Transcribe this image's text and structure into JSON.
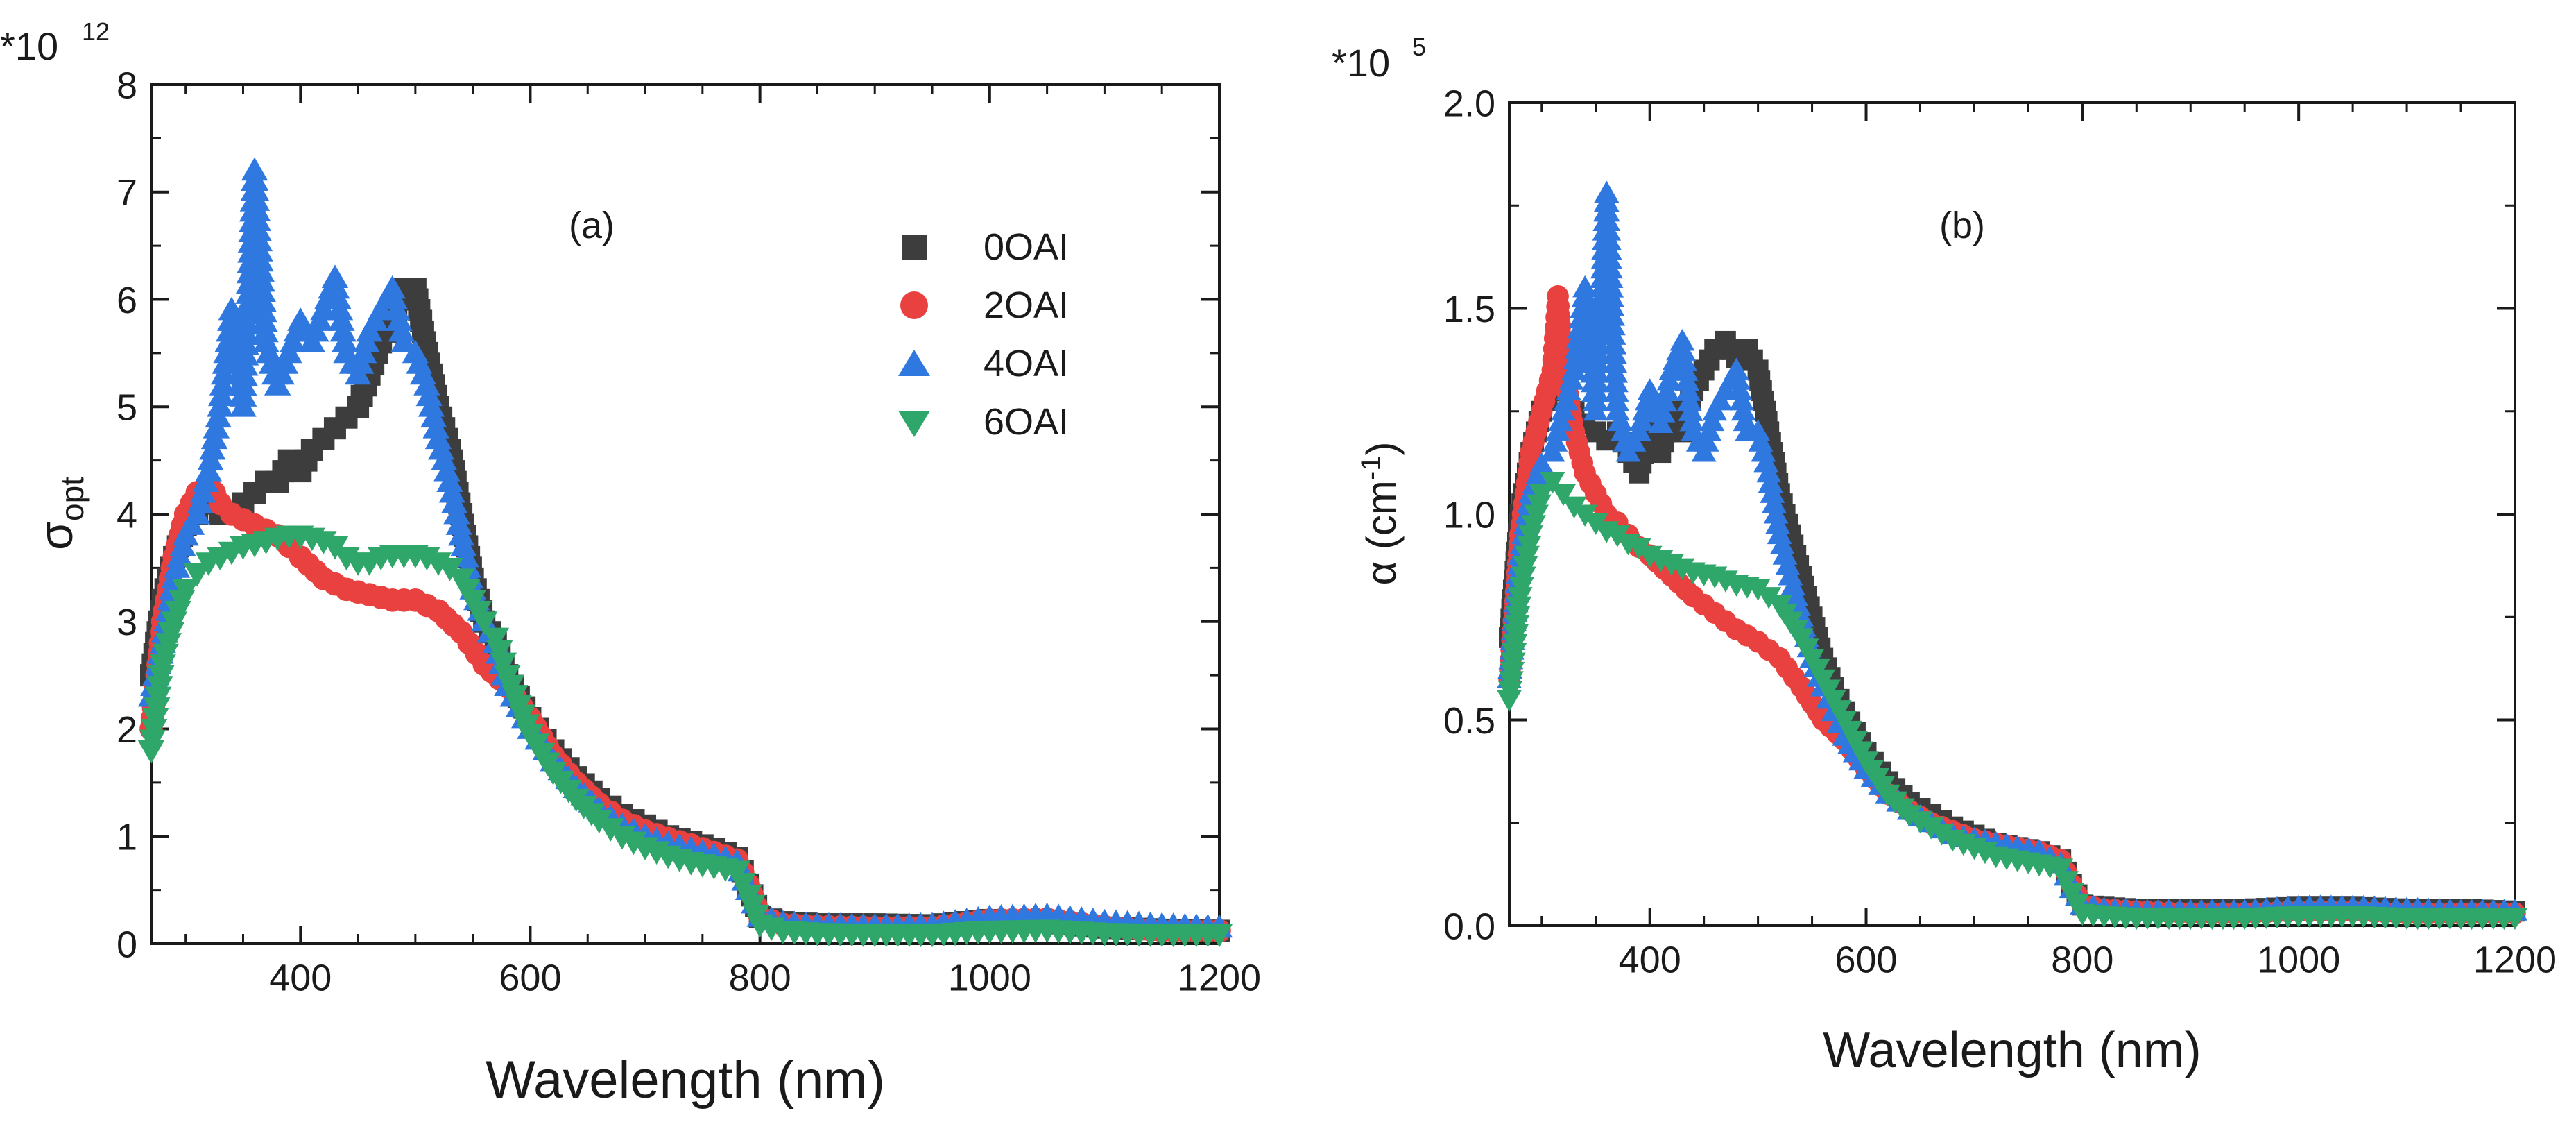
{
  "figure": {
    "background": "#ffffff"
  },
  "legend": {
    "entries": [
      {
        "name": "0OAI",
        "marker": "square",
        "color": "#3d3d3d"
      },
      {
        "name": "2OAI",
        "marker": "circle",
        "color": "#e8413f"
      },
      {
        "name": "4OAI",
        "marker": "triangle-up",
        "color": "#2f78e0"
      },
      {
        "name": "6OAI",
        "marker": "triangle-down",
        "color": "#2fa66a"
      }
    ]
  },
  "chart_data": [
    {
      "type": "scatter",
      "panel_label": "(a)",
      "multiplier": "*10",
      "exponent": "12",
      "ylabel_main": "σ",
      "ylabel_sub": "opt",
      "xlabel": "Wavelength (nm)",
      "xlim": [
        270,
        1200
      ],
      "ylim": [
        0,
        8
      ],
      "xticks": [
        400,
        600,
        800,
        1000,
        1200
      ],
      "xtick_labels": [
        "400",
        "600",
        "800",
        "1000",
        "1200"
      ],
      "yticks": [
        0,
        1,
        2,
        3,
        4,
        5,
        6,
        7,
        8
      ],
      "ytick_labels": [
        "0",
        "1",
        "2",
        "3",
        "4",
        "5",
        "6",
        "7",
        "8"
      ],
      "legend_location": "top-right",
      "series": [
        {
          "name": "0OAI",
          "x": [
            270,
            280,
            290,
            300,
            310,
            320,
            330,
            340,
            350,
            360,
            370,
            380,
            390,
            400,
            410,
            420,
            430,
            440,
            450,
            460,
            470,
            480,
            490,
            500,
            510,
            520,
            530,
            540,
            550,
            560,
            570,
            580,
            600,
            620,
            640,
            660,
            680,
            700,
            720,
            740,
            760,
            780,
            790,
            800,
            820,
            850,
            900,
            950,
            1000,
            1050,
            1100,
            1150,
            1200
          ],
          "y": [
            2.5,
            3.2,
            3.6,
            3.9,
            4.0,
            4.1,
            4.0,
            4.0,
            4.1,
            4.2,
            4.3,
            4.3,
            4.5,
            4.4,
            4.6,
            4.7,
            4.8,
            4.9,
            5.0,
            5.3,
            5.6,
            5.8,
            6.1,
            6.1,
            5.5,
            5.0,
            4.6,
            4.0,
            3.4,
            3.0,
            2.8,
            2.5,
            2.1,
            1.8,
            1.55,
            1.35,
            1.2,
            1.1,
            1.0,
            0.95,
            0.88,
            0.8,
            0.55,
            0.25,
            0.2,
            0.18,
            0.18,
            0.17,
            0.22,
            0.2,
            0.15,
            0.13,
            0.12
          ]
        },
        {
          "name": "2OAI",
          "x": [
            270,
            280,
            290,
            300,
            310,
            320,
            330,
            340,
            350,
            360,
            370,
            380,
            390,
            400,
            420,
            440,
            460,
            480,
            500,
            520,
            540,
            560,
            580,
            600,
            620,
            640,
            660,
            680,
            700,
            720,
            740,
            760,
            780,
            790,
            800,
            820,
            850,
            900,
            950,
            1000,
            1050,
            1100,
            1150,
            1200
          ],
          "y": [
            2.0,
            3.0,
            3.6,
            4.0,
            4.2,
            4.3,
            4.1,
            4.0,
            3.95,
            3.9,
            3.85,
            3.8,
            3.7,
            3.6,
            3.4,
            3.3,
            3.25,
            3.2,
            3.2,
            3.1,
            2.9,
            2.6,
            2.4,
            2.1,
            1.75,
            1.5,
            1.3,
            1.15,
            1.05,
            0.98,
            0.92,
            0.85,
            0.78,
            0.55,
            0.25,
            0.18,
            0.16,
            0.15,
            0.15,
            0.22,
            0.23,
            0.16,
            0.12,
            0.12
          ]
        },
        {
          "name": "4OAI",
          "x": [
            270,
            280,
            290,
            300,
            310,
            320,
            330,
            340,
            350,
            360,
            370,
            380,
            390,
            400,
            410,
            420,
            430,
            440,
            450,
            460,
            470,
            480,
            490,
            500,
            510,
            520,
            530,
            540,
            550,
            560,
            570,
            580,
            600,
            620,
            640,
            660,
            680,
            700,
            720,
            740,
            760,
            780,
            790,
            800,
            820,
            850,
            900,
            950,
            1000,
            1050,
            1100,
            1150,
            1200
          ],
          "y": [
            2.3,
            2.8,
            3.4,
            3.8,
            4.0,
            4.4,
            5.0,
            5.9,
            5.0,
            7.2,
            5.6,
            5.2,
            5.5,
            5.8,
            5.6,
            5.9,
            6.2,
            5.5,
            5.3,
            5.7,
            5.9,
            6.1,
            5.6,
            5.5,
            5.2,
            4.7,
            4.3,
            3.8,
            3.3,
            3.0,
            2.8,
            2.4,
            2.0,
            1.7,
            1.45,
            1.25,
            1.1,
            1.0,
            0.93,
            0.88,
            0.82,
            0.76,
            0.5,
            0.25,
            0.19,
            0.17,
            0.16,
            0.17,
            0.24,
            0.26,
            0.2,
            0.17,
            0.15
          ]
        },
        {
          "name": "6OAI",
          "x": [
            270,
            280,
            290,
            300,
            310,
            320,
            330,
            340,
            350,
            360,
            370,
            380,
            390,
            400,
            410,
            420,
            430,
            440,
            450,
            460,
            470,
            480,
            490,
            500,
            510,
            520,
            530,
            540,
            550,
            560,
            570,
            580,
            600,
            620,
            640,
            660,
            680,
            700,
            720,
            740,
            760,
            780,
            790,
            800,
            820,
            850,
            900,
            950,
            1000,
            1050,
            1100,
            1150,
            1200
          ],
          "y": [
            1.8,
            2.6,
            3.0,
            3.3,
            3.45,
            3.55,
            3.6,
            3.65,
            3.7,
            3.72,
            3.75,
            3.78,
            3.8,
            3.8,
            3.78,
            3.75,
            3.7,
            3.6,
            3.55,
            3.55,
            3.6,
            3.62,
            3.62,
            3.62,
            3.6,
            3.55,
            3.5,
            3.4,
            3.2,
            3.0,
            2.85,
            2.5,
            1.95,
            1.6,
            1.35,
            1.15,
            1.0,
            0.9,
            0.82,
            0.76,
            0.72,
            0.68,
            0.45,
            0.18,
            0.12,
            0.1,
            0.09,
            0.09,
            0.12,
            0.13,
            0.1,
            0.09,
            0.09
          ]
        }
      ]
    },
    {
      "type": "scatter",
      "panel_label": "(b)",
      "multiplier": "*10",
      "exponent": "5",
      "ylabel_main": "α (cm",
      "ylabel_sup": "-1",
      "ylabel_end": ")",
      "xlabel": "Wavelength (nm)",
      "xlim": [
        270,
        1200
      ],
      "ylim": [
        0,
        2.0
      ],
      "xticks": [
        400,
        600,
        800,
        1000,
        1200
      ],
      "xtick_labels": [
        "400",
        "600",
        "800",
        "1000",
        "1200"
      ],
      "yticks": [
        0,
        0.5,
        1.0,
        1.5,
        2.0
      ],
      "ytick_labels": [
        "0.0",
        "0.5",
        "1.0",
        "1.5",
        "2.0"
      ],
      "series": [
        {
          "name": "0OAI",
          "x": [
            270,
            280,
            290,
            300,
            310,
            320,
            330,
            340,
            350,
            360,
            370,
            380,
            390,
            400,
            410,
            420,
            430,
            440,
            450,
            460,
            470,
            480,
            490,
            500,
            510,
            520,
            530,
            540,
            550,
            560,
            570,
            580,
            600,
            620,
            640,
            660,
            680,
            700,
            720,
            740,
            760,
            780,
            790,
            800,
            820,
            850,
            900,
            950,
            1000,
            1050,
            1100,
            1150,
            1200
          ],
          "y": [
            0.7,
            1.0,
            1.15,
            1.25,
            1.3,
            1.3,
            1.25,
            1.22,
            1.2,
            1.18,
            1.2,
            1.15,
            1.1,
            1.22,
            1.15,
            1.25,
            1.2,
            1.3,
            1.35,
            1.4,
            1.42,
            1.38,
            1.4,
            1.35,
            1.2,
            1.05,
            0.95,
            0.85,
            0.75,
            0.65,
            0.58,
            0.52,
            0.42,
            0.35,
            0.3,
            0.27,
            0.24,
            0.22,
            0.2,
            0.19,
            0.18,
            0.16,
            0.1,
            0.05,
            0.045,
            0.04,
            0.04,
            0.04,
            0.045,
            0.045,
            0.04,
            0.04,
            0.035
          ]
        },
        {
          "name": "2OAI",
          "x": [
            270,
            280,
            290,
            300,
            310,
            315,
            320,
            330,
            340,
            350,
            360,
            370,
            380,
            390,
            400,
            420,
            440,
            460,
            480,
            500,
            520,
            540,
            560,
            580,
            600,
            620,
            640,
            660,
            680,
            700,
            720,
            740,
            760,
            780,
            790,
            800,
            820,
            850,
            900,
            950,
            1000,
            1050,
            1100,
            1150,
            1200
          ],
          "y": [
            0.6,
            0.95,
            1.15,
            1.25,
            1.35,
            1.53,
            1.36,
            1.2,
            1.1,
            1.05,
            1.0,
            0.98,
            0.95,
            0.92,
            0.9,
            0.85,
            0.8,
            0.76,
            0.72,
            0.69,
            0.65,
            0.58,
            0.5,
            0.45,
            0.38,
            0.32,
            0.28,
            0.25,
            0.23,
            0.21,
            0.2,
            0.19,
            0.18,
            0.16,
            0.1,
            0.05,
            0.04,
            0.035,
            0.03,
            0.03,
            0.035,
            0.035,
            0.03,
            0.03,
            0.03
          ]
        },
        {
          "name": "4OAI",
          "x": [
            270,
            280,
            290,
            300,
            310,
            320,
            330,
            340,
            350,
            360,
            370,
            380,
            390,
            400,
            410,
            420,
            430,
            440,
            450,
            460,
            470,
            480,
            490,
            500,
            510,
            520,
            530,
            540,
            550,
            560,
            570,
            580,
            600,
            620,
            640,
            660,
            680,
            700,
            720,
            740,
            760,
            780,
            790,
            800,
            820,
            850,
            900,
            950,
            1000,
            1050,
            1100,
            1150,
            1200
          ],
          "y": [
            0.6,
            0.9,
            1.05,
            1.12,
            1.15,
            1.25,
            1.35,
            1.55,
            1.25,
            1.78,
            1.25,
            1.15,
            1.2,
            1.3,
            1.22,
            1.35,
            1.42,
            1.2,
            1.15,
            1.25,
            1.3,
            1.35,
            1.2,
            1.2,
            1.1,
            0.95,
            0.85,
            0.75,
            0.65,
            0.58,
            0.52,
            0.46,
            0.38,
            0.32,
            0.28,
            0.25,
            0.22,
            0.21,
            0.2,
            0.19,
            0.18,
            0.15,
            0.09,
            0.05,
            0.04,
            0.035,
            0.035,
            0.035,
            0.045,
            0.045,
            0.04,
            0.035,
            0.035
          ]
        },
        {
          "name": "6OAI",
          "x": [
            270,
            280,
            290,
            300,
            310,
            320,
            330,
            340,
            350,
            360,
            370,
            380,
            390,
            400,
            420,
            440,
            460,
            480,
            500,
            520,
            530,
            540,
            550,
            560,
            570,
            580,
            600,
            620,
            640,
            660,
            680,
            700,
            720,
            740,
            760,
            780,
            790,
            800,
            820,
            850,
            900,
            950,
            1000,
            1050,
            1100,
            1150,
            1200
          ],
          "y": [
            0.55,
            0.8,
            0.95,
            1.05,
            1.08,
            1.05,
            1.02,
            1.0,
            0.98,
            0.96,
            0.95,
            0.93,
            0.92,
            0.9,
            0.88,
            0.86,
            0.85,
            0.83,
            0.82,
            0.78,
            0.74,
            0.7,
            0.65,
            0.6,
            0.55,
            0.5,
            0.4,
            0.32,
            0.27,
            0.24,
            0.21,
            0.19,
            0.17,
            0.16,
            0.15,
            0.14,
            0.08,
            0.03,
            0.025,
            0.02,
            0.02,
            0.02,
            0.025,
            0.025,
            0.02,
            0.02,
            0.02
          ]
        }
      ]
    }
  ]
}
